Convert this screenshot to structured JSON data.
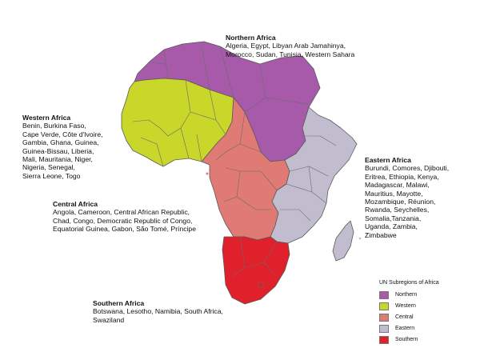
{
  "legend": {
    "title": "UN Subregions of Africa",
    "items": [
      {
        "label": "Northern",
        "color": "#a65aa9"
      },
      {
        "label": "Western",
        "color": "#c9d62a"
      },
      {
        "label": "Central",
        "color": "#e07a74"
      },
      {
        "label": "Eastern",
        "color": "#c2bccf"
      },
      {
        "label": "Southern",
        "color": "#e0202a"
      }
    ]
  },
  "regions": {
    "northern": {
      "title": "Northern Africa",
      "countries": "Algeria, Egypt, Libyan Arab Jamahinya,\nMorocco, Sudan, Tunisia, Western Sahara"
    },
    "western": {
      "title": "Western Africa",
      "countries": "Benin, Burkina Faso,\nCape Verde, Côte d'Ivoire,\nGambia, Ghana, Guinea,\nGuinea-Bissau, Liberia,\nMali, Mauritania, Niger,\nNigeria, Senegal,\nSierra Leone, Togo"
    },
    "central": {
      "title": "Central Africa",
      "countries": "Angola, Cameroon, Central African Republic,\nChad, Congo, Democratic Republic of Congo,\nEquatorial Guinea, Gabon, São Tomé, Príncipe"
    },
    "eastern": {
      "title": "Eastern Africa",
      "countries": "Burundi, Comores, Djibouti,\nEritrea, Ethiopia, Kenya,\nMadagascar, Malawi,\nMauritius, Mayotte,\nMozambique, Réunion,\nRwanda, Seychelles,\nSomalia,Tanzania,\nUganda, Zambia,\nZimbabwe"
    },
    "southern": {
      "title": "Southern Africa",
      "countries": "Botswana, Lesotho, Namibia, South Africa,\nSwaziland"
    }
  }
}
